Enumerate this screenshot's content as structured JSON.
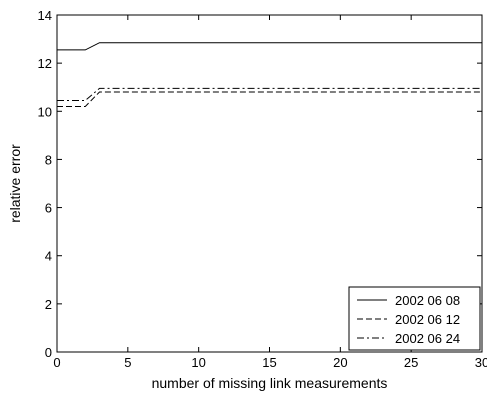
{
  "chart_data": {
    "type": "line",
    "xlabel": "number of missing link measurements",
    "ylabel": "relative error",
    "xlim": [
      0,
      30
    ],
    "ylim": [
      0,
      14
    ],
    "xticks": [
      0,
      5,
      10,
      15,
      20,
      25,
      30
    ],
    "yticks": [
      0,
      2,
      4,
      6,
      8,
      10,
      12,
      14
    ],
    "grid": false,
    "legend_position": "bottom-right",
    "series": [
      {
        "name": "2002 06 08",
        "style": "solid",
        "color": "#000000",
        "x": [
          0,
          2,
          3,
          30
        ],
        "y": [
          12.55,
          12.55,
          12.85,
          12.85
        ]
      },
      {
        "name": "2002 06 12",
        "style": "dashed",
        "color": "#000000",
        "x": [
          0,
          2,
          3,
          30
        ],
        "y": [
          10.2,
          10.2,
          10.8,
          10.8
        ]
      },
      {
        "name": "2002 06 24",
        "style": "dashdot",
        "color": "#000000",
        "x": [
          0,
          2,
          3,
          30
        ],
        "y": [
          10.45,
          10.45,
          10.95,
          10.95
        ]
      }
    ]
  }
}
